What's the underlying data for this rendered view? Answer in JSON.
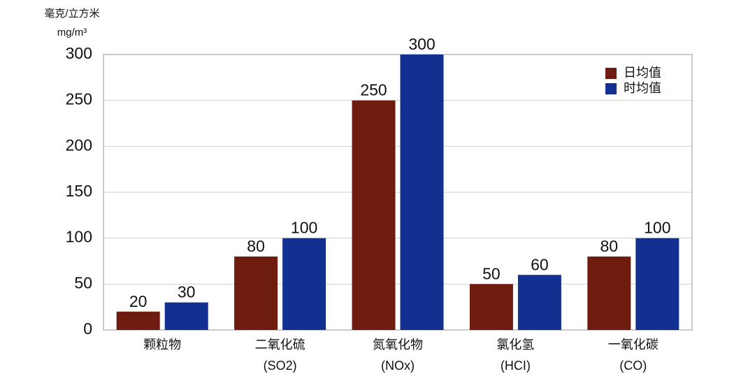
{
  "chart_data": {
    "type": "bar",
    "y_label": "毫克/立方米",
    "y_unit": "mg/m³",
    "categories": [
      "颗粒物",
      "二氧化硫",
      "氮氧化物",
      "氯化氢",
      "一氧化碳"
    ],
    "category_notes": [
      null,
      "(SO2)",
      "(NOx)",
      "(HCI)",
      "(CO)"
    ],
    "series": [
      {
        "name": "日均值",
        "color": "#6e1b10",
        "values": [
          20,
          80,
          250,
          50,
          80
        ]
      },
      {
        "name": "时均值",
        "color": "#12308f",
        "values": [
          30,
          100,
          300,
          60,
          100
        ]
      }
    ],
    "ylim": [
      0,
      300
    ],
    "yticks": [
      0,
      50,
      100,
      150,
      200,
      250,
      300
    ],
    "grid": true,
    "legend": "top-right"
  }
}
